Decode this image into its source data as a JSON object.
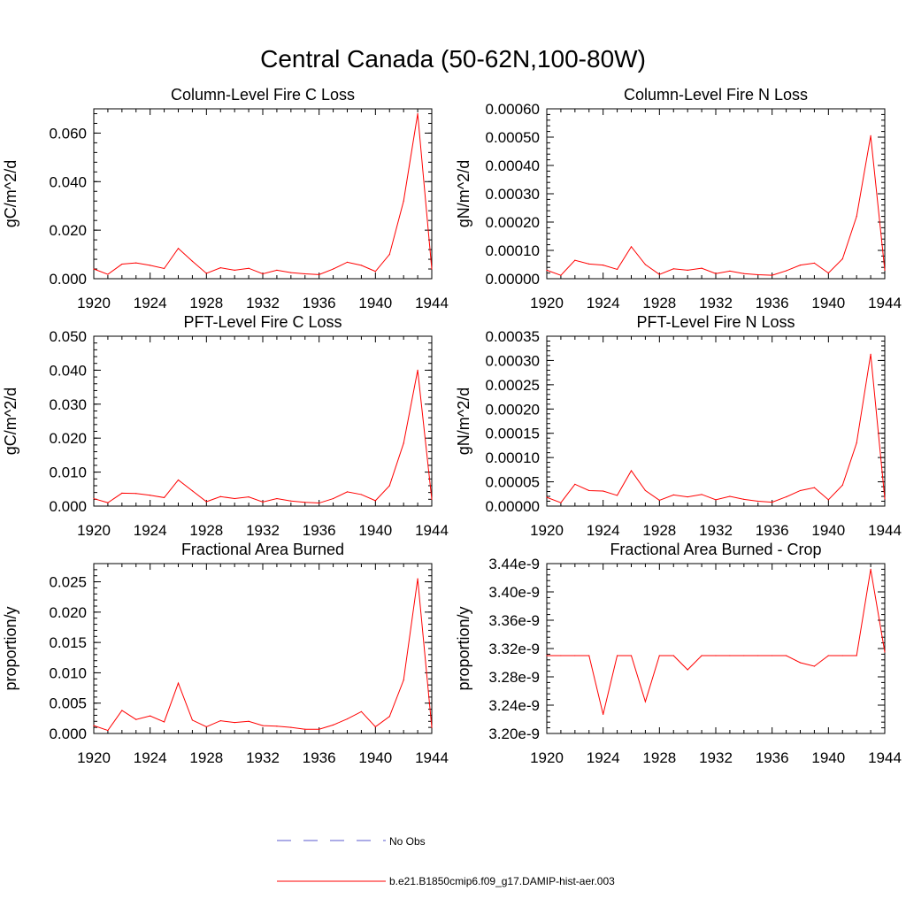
{
  "figure": {
    "title": "Central Canada (50-62N,100-80W)"
  },
  "legend": {
    "entries": [
      {
        "label": "No Obs",
        "style": "dashed",
        "color": "#5a5acf"
      },
      {
        "label": "b.e21.B1850cmip6.f09_g17.DAMIP-hist-aer.003",
        "style": "solid",
        "color": "#ff0000"
      }
    ]
  },
  "chart_data": [
    {
      "type": "line",
      "title": "Column-Level Fire C Loss",
      "ylabel": "gC/m^2/d",
      "xlim": [
        1920,
        1944
      ],
      "ylim": [
        0,
        0.07
      ],
      "xticks": [
        1920,
        1924,
        1928,
        1932,
        1936,
        1940,
        1944
      ],
      "yticks": [
        0.0,
        0.02,
        0.04,
        0.06
      ],
      "ytick_labels": [
        "0.000",
        "0.020",
        "0.040",
        "0.060"
      ],
      "series": [
        {
          "name": "b.e21.B1850cmip6.f09_g17.DAMIP-hist-aer.003",
          "color": "#ff0000",
          "x": [
            1920,
            1921,
            1922,
            1923,
            1924,
            1925,
            1926,
            1927,
            1928,
            1929,
            1930,
            1931,
            1932,
            1933,
            1934,
            1935,
            1936,
            1937,
            1938,
            1939,
            1940,
            1941,
            1942,
            1943,
            1944
          ],
          "y": [
            0.004,
            0.0018,
            0.006,
            0.0065,
            0.0055,
            0.0042,
            0.0125,
            0.0072,
            0.0022,
            0.0045,
            0.0035,
            0.0043,
            0.002,
            0.0035,
            0.0025,
            0.002,
            0.0017,
            0.004,
            0.0068,
            0.0055,
            0.003,
            0.01,
            0.032,
            0.068,
            0.004
          ]
        }
      ]
    },
    {
      "type": "line",
      "title": "Column-Level Fire N Loss",
      "ylabel": "gN/m^2/d",
      "xlim": [
        1920,
        1944
      ],
      "ylim": [
        0,
        0.0006
      ],
      "xticks": [
        1920,
        1924,
        1928,
        1932,
        1936,
        1940,
        1944
      ],
      "yticks": [
        0,
        0.0001,
        0.0002,
        0.0003,
        0.0004,
        0.0005,
        0.0006
      ],
      "ytick_labels": [
        "0.00000",
        "0.00010",
        "0.00020",
        "0.00030",
        "0.00040",
        "0.00050",
        "0.00060"
      ],
      "series": [
        {
          "name": "b.e21.B1850cmip6.f09_g17.DAMIP-hist-aer.003",
          "color": "#ff0000",
          "x": [
            1920,
            1921,
            1922,
            1923,
            1924,
            1925,
            1926,
            1927,
            1928,
            1929,
            1930,
            1931,
            1932,
            1933,
            1934,
            1935,
            1936,
            1937,
            1938,
            1939,
            1940,
            1941,
            1942,
            1943,
            1944
          ],
          "y": [
            3e-05,
            1.2e-05,
            6.5e-05,
            5.2e-05,
            4.8e-05,
            3.3e-05,
            0.000113,
            5e-05,
            1.5e-05,
            3.5e-05,
            3e-05,
            3.7e-05,
            1.8e-05,
            2.7e-05,
            1.8e-05,
            1.4e-05,
            1.2e-05,
            2.8e-05,
            4.8e-05,
            5.5e-05,
            2e-05,
            7e-05,
            0.00022,
            0.000505,
            3e-05
          ]
        }
      ]
    },
    {
      "type": "line",
      "title": "PFT-Level Fire C Loss",
      "ylabel": "gC/m^2/d",
      "xlim": [
        1920,
        1944
      ],
      "ylim": [
        0,
        0.05
      ],
      "xticks": [
        1920,
        1924,
        1928,
        1932,
        1936,
        1940,
        1944
      ],
      "yticks": [
        0,
        0.01,
        0.02,
        0.03,
        0.04,
        0.05
      ],
      "ytick_labels": [
        "0.000",
        "0.010",
        "0.020",
        "0.030",
        "0.040",
        "0.050"
      ],
      "series": [
        {
          "name": "b.e21.B1850cmip6.f09_g17.DAMIP-hist-aer.003",
          "color": "#ff0000",
          "x": [
            1920,
            1921,
            1922,
            1923,
            1924,
            1925,
            1926,
            1927,
            1928,
            1929,
            1930,
            1931,
            1932,
            1933,
            1934,
            1935,
            1936,
            1937,
            1938,
            1939,
            1940,
            1941,
            1942,
            1943,
            1944
          ],
          "y": [
            0.0022,
            0.001,
            0.0038,
            0.0037,
            0.0032,
            0.0025,
            0.0077,
            0.0045,
            0.0013,
            0.0028,
            0.0022,
            0.0027,
            0.0012,
            0.0022,
            0.0015,
            0.0011,
            0.0009,
            0.0022,
            0.0042,
            0.0034,
            0.0016,
            0.006,
            0.0185,
            0.04,
            0.002
          ]
        }
      ]
    },
    {
      "type": "line",
      "title": "PFT-Level Fire N Loss",
      "ylabel": "gN/m^2/d",
      "xlim": [
        1920,
        1944
      ],
      "ylim": [
        0,
        0.00035
      ],
      "xticks": [
        1920,
        1924,
        1928,
        1932,
        1936,
        1940,
        1944
      ],
      "yticks": [
        0,
        5e-05,
        0.0001,
        0.00015,
        0.0002,
        0.00025,
        0.0003,
        0.00035
      ],
      "ytick_labels": [
        "0.00000",
        "0.00005",
        "0.00010",
        "0.00015",
        "0.00020",
        "0.00025",
        "0.00030",
        "0.00035"
      ],
      "series": [
        {
          "name": "b.e21.B1850cmip6.f09_g17.DAMIP-hist-aer.003",
          "color": "#ff0000",
          "x": [
            1920,
            1921,
            1922,
            1923,
            1924,
            1925,
            1926,
            1927,
            1928,
            1929,
            1930,
            1931,
            1932,
            1933,
            1934,
            1935,
            1936,
            1937,
            1938,
            1939,
            1940,
            1941,
            1942,
            1943,
            1944
          ],
          "y": [
            1.8e-05,
            7e-06,
            4.5e-05,
            3.2e-05,
            3.1e-05,
            2.2e-05,
            7.3e-05,
            3.2e-05,
            1.2e-05,
            2.3e-05,
            1.9e-05,
            2.4e-05,
            1.3e-05,
            2e-05,
            1.4e-05,
            1e-05,
            8e-06,
            1.9e-05,
            3.2e-05,
            3.8e-05,
            1.3e-05,
            4.3e-05,
            0.00013,
            0.000313,
            1.5e-05
          ]
        }
      ]
    },
    {
      "type": "line",
      "title": "Fractional Area Burned",
      "ylabel": "proportion/y",
      "xlim": [
        1920,
        1944
      ],
      "ylim": [
        0,
        0.028
      ],
      "xticks": [
        1920,
        1924,
        1928,
        1932,
        1936,
        1940,
        1944
      ],
      "yticks": [
        0,
        0.005,
        0.01,
        0.015,
        0.02,
        0.025
      ],
      "ytick_labels": [
        "0.000",
        "0.005",
        "0.010",
        "0.015",
        "0.020",
        "0.025"
      ],
      "series": [
        {
          "name": "b.e21.B1850cmip6.f09_g17.DAMIP-hist-aer.003",
          "color": "#ff0000",
          "x": [
            1920,
            1921,
            1922,
            1923,
            1924,
            1925,
            1926,
            1927,
            1928,
            1929,
            1930,
            1931,
            1932,
            1933,
            1934,
            1935,
            1936,
            1937,
            1938,
            1939,
            1940,
            1941,
            1942,
            1943,
            1944
          ],
          "y": [
            0.0013,
            0.0005,
            0.0038,
            0.0023,
            0.0029,
            0.0019,
            0.0083,
            0.0022,
            0.0011,
            0.0021,
            0.0018,
            0.002,
            0.0013,
            0.0012,
            0.001,
            0.0007,
            0.0007,
            0.0014,
            0.0024,
            0.0036,
            0.0011,
            0.0028,
            0.0088,
            0.0255,
            0.001
          ]
        }
      ]
    },
    {
      "type": "line",
      "title": "Fractional Area Burned - Crop",
      "ylabel": "proportion/y",
      "xlim": [
        1920,
        1944
      ],
      "ylim": [
        3.2e-09,
        3.44e-09
      ],
      "xticks": [
        1920,
        1924,
        1928,
        1932,
        1936,
        1940,
        1944
      ],
      "yticks": [
        3.2e-09,
        3.24e-09,
        3.28e-09,
        3.32e-09,
        3.36e-09,
        3.4e-09,
        3.44e-09
      ],
      "ytick_labels": [
        "3.20e-9",
        "3.24e-9",
        "3.28e-9",
        "3.32e-9",
        "3.36e-9",
        "3.40e-9",
        "3.44e-9"
      ],
      "series": [
        {
          "name": "b.e21.B1850cmip6.f09_g17.DAMIP-hist-aer.003",
          "color": "#ff0000",
          "x": [
            1920,
            1921,
            1922,
            1923,
            1924,
            1925,
            1926,
            1927,
            1928,
            1929,
            1930,
            1931,
            1932,
            1933,
            1934,
            1935,
            1936,
            1937,
            1938,
            1939,
            1940,
            1941,
            1942,
            1943,
            1944
          ],
          "y": [
            3.31e-09,
            3.31e-09,
            3.31e-09,
            3.31e-09,
            3.227e-09,
            3.31e-09,
            3.31e-09,
            3.245e-09,
            3.31e-09,
            3.31e-09,
            3.29e-09,
            3.31e-09,
            3.31e-09,
            3.31e-09,
            3.31e-09,
            3.31e-09,
            3.31e-09,
            3.31e-09,
            3.3e-09,
            3.295e-09,
            3.31e-09,
            3.31e-09,
            3.31e-09,
            3.432e-09,
            3.315e-09
          ]
        }
      ]
    }
  ]
}
